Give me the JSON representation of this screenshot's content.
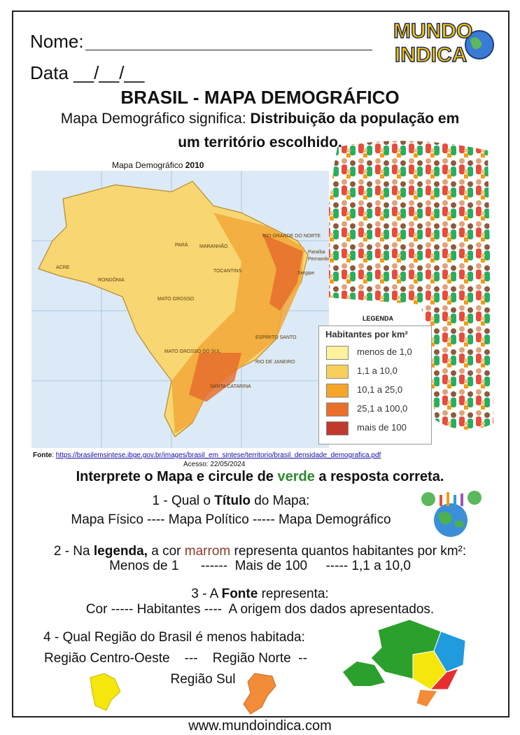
{
  "header": {
    "name_label": "Nome:",
    "date_label": "Data __/__/__",
    "logo_top": "MUNDO",
    "logo_bottom": "INDICA"
  },
  "title": "BRASIL - MAPA DEMOGRÁFICO",
  "definition": {
    "lead": "Mapa Demográfico significa: ",
    "bold": "Distribuição da população em",
    "bold_2": "um território escolhido."
  },
  "map": {
    "caption": "Mapa Demográfico ",
    "year": "2010",
    "labels": [
      "RIO GRANDE DO NORTE",
      "Paraíba",
      "Pernambuco",
      "Sergipe",
      "MARANHÃO",
      "PARÁ",
      "TOCANTINS",
      "MATO GROSSO",
      "RONDÔNIA",
      "ACRE",
      "MATO GROSSO DO SUL",
      "ESPÍRITO SANTO",
      "RIO DE JANEIRO",
      "SANTA CATARINA"
    ],
    "legend": {
      "heading": "LEGENDA",
      "title": "Habitantes por km²",
      "items": [
        {
          "label": "menos de 1,0",
          "color": "#fdf29b"
        },
        {
          "label": "1,1 a 10,0",
          "color": "#f9cf5b"
        },
        {
          "label": "10,1 a 25,0",
          "color": "#f4a52a"
        },
        {
          "label": "25,1 a 100,0",
          "color": "#e8702a"
        },
        {
          "label": "mais de 100",
          "color": "#c0392b"
        }
      ]
    }
  },
  "source": {
    "label": "Fonte",
    "separator": ": ",
    "url": "https://brasilemsintese.ibge.gov.br/images/brasil_em_sintese/territorio/brasil_densidade_demografica.pdf",
    "accessed": "Acesso: 22/05/2024"
  },
  "instruction": {
    "before": "Interprete o Mapa e circule de ",
    "highlight": "verde",
    "after": " a resposta correta."
  },
  "questions": [
    {
      "parts": [
        {
          "text": "1 - Qual o ",
          "style": "normal"
        },
        {
          "text": "Título",
          "style": "bold"
        },
        {
          "text": " do Mapa:",
          "style": "normal"
        }
      ],
      "options": [
        "Mapa Físico ---- Mapa Político ----- Mapa Demográfico"
      ]
    },
    {
      "parts": [
        {
          "text": "2 - Na ",
          "style": "normal"
        },
        {
          "text": "legenda,",
          "style": "bold"
        },
        {
          "text": " a cor ",
          "style": "normal"
        },
        {
          "text": "marrom",
          "style": "brown"
        },
        {
          "text": " representa quantos habitantes por km²:",
          "style": "normal"
        }
      ],
      "options": [
        "Menos de 1      ------  Mais de 100     ----- 1,1 a 10,0"
      ]
    },
    {
      "parts": [
        {
          "text": "3 - A ",
          "style": "normal"
        },
        {
          "text": "Fonte",
          "style": "bold"
        },
        {
          "text": " representa:",
          "style": "normal"
        }
      ],
      "options": [
        "Cor ----- Habitantes ----  A origem dos dados apresentados."
      ]
    },
    {
      "parts": [
        {
          "text": "4 - Qual Região do Brasil é menos habitada:",
          "style": "normal"
        }
      ],
      "options": [
        "Região Centro-Oeste    ---    Região Norte  --",
        "Região Sul"
      ]
    }
  ],
  "footer": "www.mundoindica.com"
}
